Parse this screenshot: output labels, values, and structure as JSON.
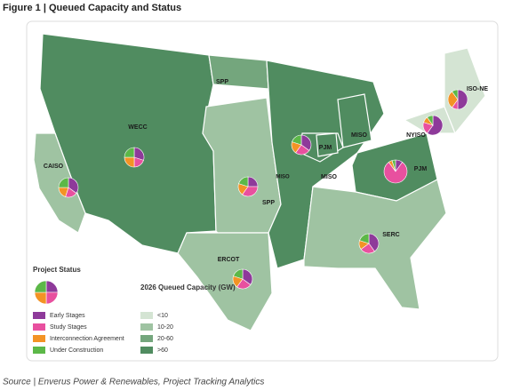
{
  "title": "Figure 1 | Queued Capacity and Status",
  "source": "Source | Enverus Power & Renewables, Project Tracking Analytics",
  "status_legend": {
    "title": "Project Status",
    "items": [
      {
        "name": "Early Stages",
        "color": "#8e3a9a"
      },
      {
        "name": "Study Stages",
        "color": "#e8509f"
      },
      {
        "name": "Interconnection Agreement",
        "color": "#f39325"
      },
      {
        "name": "Under Construction",
        "color": "#5cb848"
      }
    ]
  },
  "capacity_legend": {
    "title": "2026 Queued Capacity (GW)",
    "items": [
      {
        "name": "<10",
        "color": "#d4e4d3"
      },
      {
        "name": "10-20",
        "color": "#9fc3a2"
      },
      {
        "name": "20-60",
        "color": "#74a67d"
      },
      {
        "name": ">60",
        "color": "#508c60"
      }
    ]
  },
  "regions": [
    {
      "label": "WECC",
      "color": "#508c60"
    },
    {
      "label": "CAISO",
      "color": "#9fc3a2"
    },
    {
      "label": "SPP",
      "color": "#74a67d"
    },
    {
      "label": "SPP",
      "color": "#9fc3a2"
    },
    {
      "label": "MISO",
      "color": "#508c60"
    },
    {
      "label": "MISO",
      "color": "#508c60"
    },
    {
      "label": "PJM",
      "color": "#508c60"
    },
    {
      "label": "ERCOT",
      "color": "#9fc3a2"
    },
    {
      "label": "SERC",
      "color": "#9fc3a2"
    },
    {
      "label": "NYISO",
      "color": "#d4e4d3"
    },
    {
      "label": "ISO-NE",
      "color": "#d4e4d3"
    },
    {
      "label": "MISO",
      "color": "#508c60"
    },
    {
      "label": "PJM",
      "color": "#508c60"
    }
  ],
  "pies": [
    {
      "region": "WECC",
      "values": [
        30,
        20,
        25,
        25
      ]
    },
    {
      "region": "CAISO",
      "values": [
        35,
        20,
        20,
        25
      ]
    },
    {
      "region": "SPP",
      "values": [
        25,
        35,
        20,
        20
      ]
    },
    {
      "region": "MISO",
      "values": [
        35,
        25,
        20,
        20
      ]
    },
    {
      "region": "PJM",
      "values": [
        10,
        80,
        5,
        5
      ]
    },
    {
      "region": "NYISO",
      "values": [
        60,
        20,
        10,
        10
      ]
    },
    {
      "region": "ISO-NE",
      "values": [
        50,
        10,
        30,
        10
      ]
    },
    {
      "region": "SERC",
      "values": [
        40,
        25,
        15,
        20
      ]
    },
    {
      "region": "ERCOT",
      "values": [
        35,
        25,
        20,
        20
      ]
    }
  ]
}
